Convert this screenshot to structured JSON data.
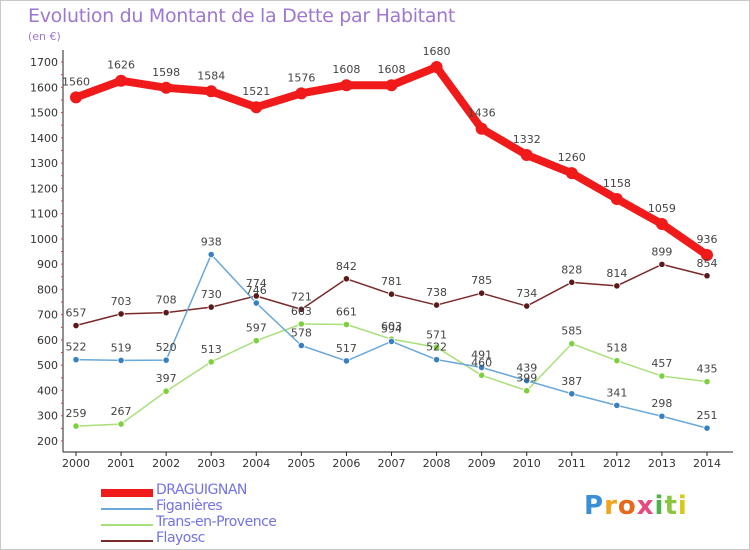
{
  "title": "Evolution du Montant de la Dette par Habitant",
  "subtitle": "(en €)",
  "logo": {
    "text": "Proxiti",
    "letters": [
      {
        "ch": "P",
        "color": "#3a8fd6"
      },
      {
        "ch": "r",
        "color": "#f2a51a"
      },
      {
        "ch": "o",
        "color": "#e8671c"
      },
      {
        "ch": "x",
        "color": "#e84a7f"
      },
      {
        "ch": "i",
        "color": "#4fb24a"
      },
      {
        "ch": "t",
        "color": "#8cc63f"
      },
      {
        "ch": "i",
        "color": "#d9c81a"
      }
    ]
  },
  "chart_data": {
    "type": "line",
    "title": "Evolution du Montant de la Dette par Habitant",
    "ylabel": "(en €)",
    "xlabel": "",
    "x": [
      "2000",
      "2001",
      "2002",
      "2003",
      "2004",
      "2005",
      "2006",
      "2007",
      "2008",
      "2009",
      "2010",
      "2011",
      "2012",
      "2013",
      "2014"
    ],
    "ylim": [
      200,
      1700
    ],
    "yticks": [
      200,
      300,
      400,
      500,
      600,
      700,
      800,
      900,
      1000,
      1100,
      1200,
      1300,
      1400,
      1500,
      1600,
      1700
    ],
    "grid": false,
    "legend_position": "bottom-left",
    "series": [
      {
        "name": "DRAGUIGNAN",
        "color": "#f01a1a",
        "marker": "#f01a1a",
        "values": [
          1560,
          1626,
          1598,
          1584,
          1521,
          1576,
          1608,
          1608,
          1680,
          1436,
          1332,
          1260,
          1158,
          1059,
          936
        ]
      },
      {
        "name": "Figanières",
        "color": "#6aa8d8",
        "marker": "#3a7fc0",
        "values": [
          522,
          519,
          520,
          938,
          746,
          578,
          517,
          594,
          522,
          491,
          439,
          387,
          341,
          298,
          251
        ]
      },
      {
        "name": "Trans-en-Provence",
        "color": "#a8e07a",
        "marker": "#7ed040",
        "values": [
          259,
          267,
          397,
          513,
          597,
          663,
          661,
          603,
          571,
          460,
          399,
          585,
          518,
          457,
          435
        ]
      },
      {
        "name": "Flayosc",
        "color": "#7a2a2a",
        "marker": "#5a1a1a",
        "values": [
          657,
          703,
          708,
          730,
          774,
          721,
          842,
          781,
          738,
          785,
          734,
          828,
          814,
          899,
          854
        ]
      }
    ]
  }
}
